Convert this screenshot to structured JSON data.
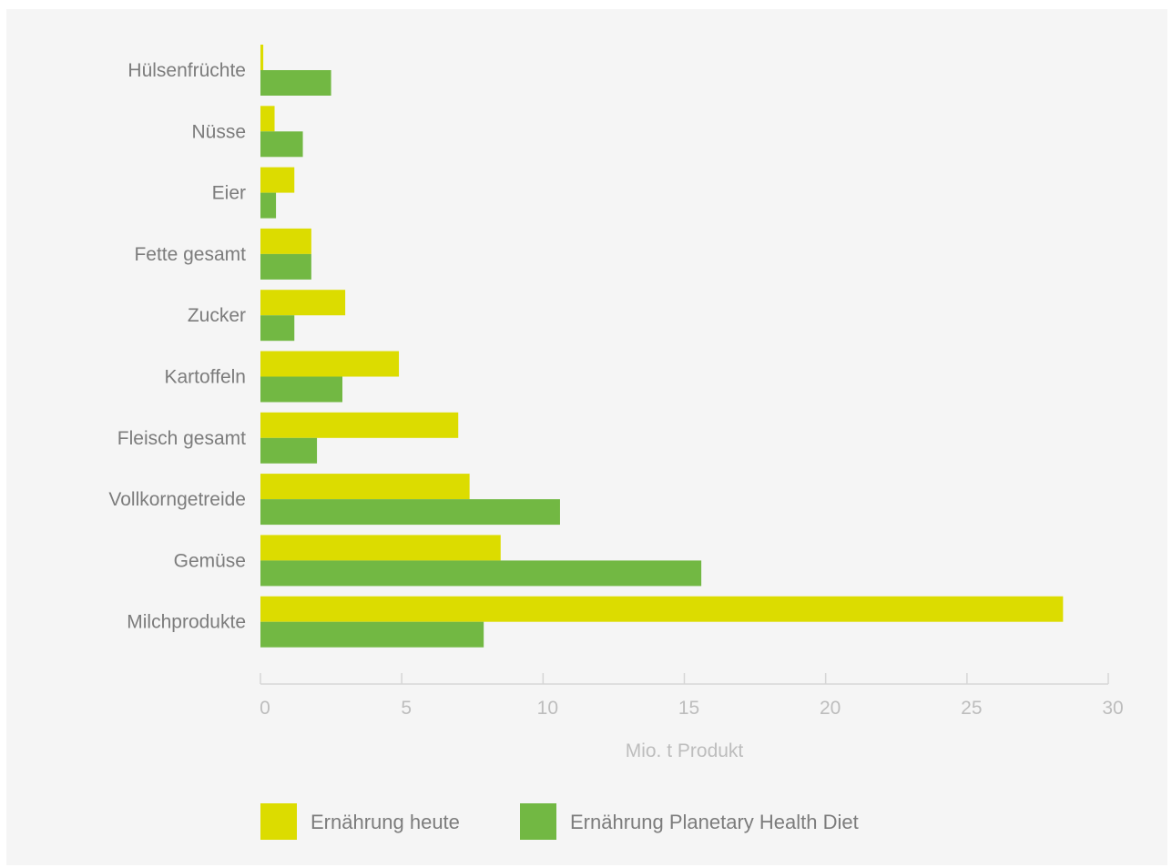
{
  "chart_data": {
    "type": "bar",
    "orientation": "horizontal",
    "categories": [
      "Hülsenfrüchte",
      "Nüsse",
      "Eier",
      "Fette gesamt",
      "Zucker",
      "Kartoffeln",
      "Fleisch gesamt",
      "Vollkorngetreide",
      "Gemüse",
      "Milchprodukte"
    ],
    "series": [
      {
        "name": "Ernährung heute",
        "color": "#dcdc00",
        "values": [
          0.1,
          0.5,
          1.2,
          1.8,
          3.0,
          4.9,
          7.0,
          7.4,
          8.5,
          28.4
        ]
      },
      {
        "name": "Ernährung Planetary Health Diet",
        "color": "#72b843",
        "values": [
          2.5,
          1.5,
          0.55,
          1.8,
          1.2,
          2.9,
          2.0,
          10.6,
          15.6,
          7.9
        ]
      }
    ],
    "xlabel": "Mio. t Produkt",
    "ylabel": "",
    "xlim": [
      0,
      30
    ],
    "xticks": [
      "0",
      "5",
      "10",
      "15",
      "20",
      "25",
      "30"
    ],
    "grid": false,
    "legend_position": "bottom-left"
  }
}
